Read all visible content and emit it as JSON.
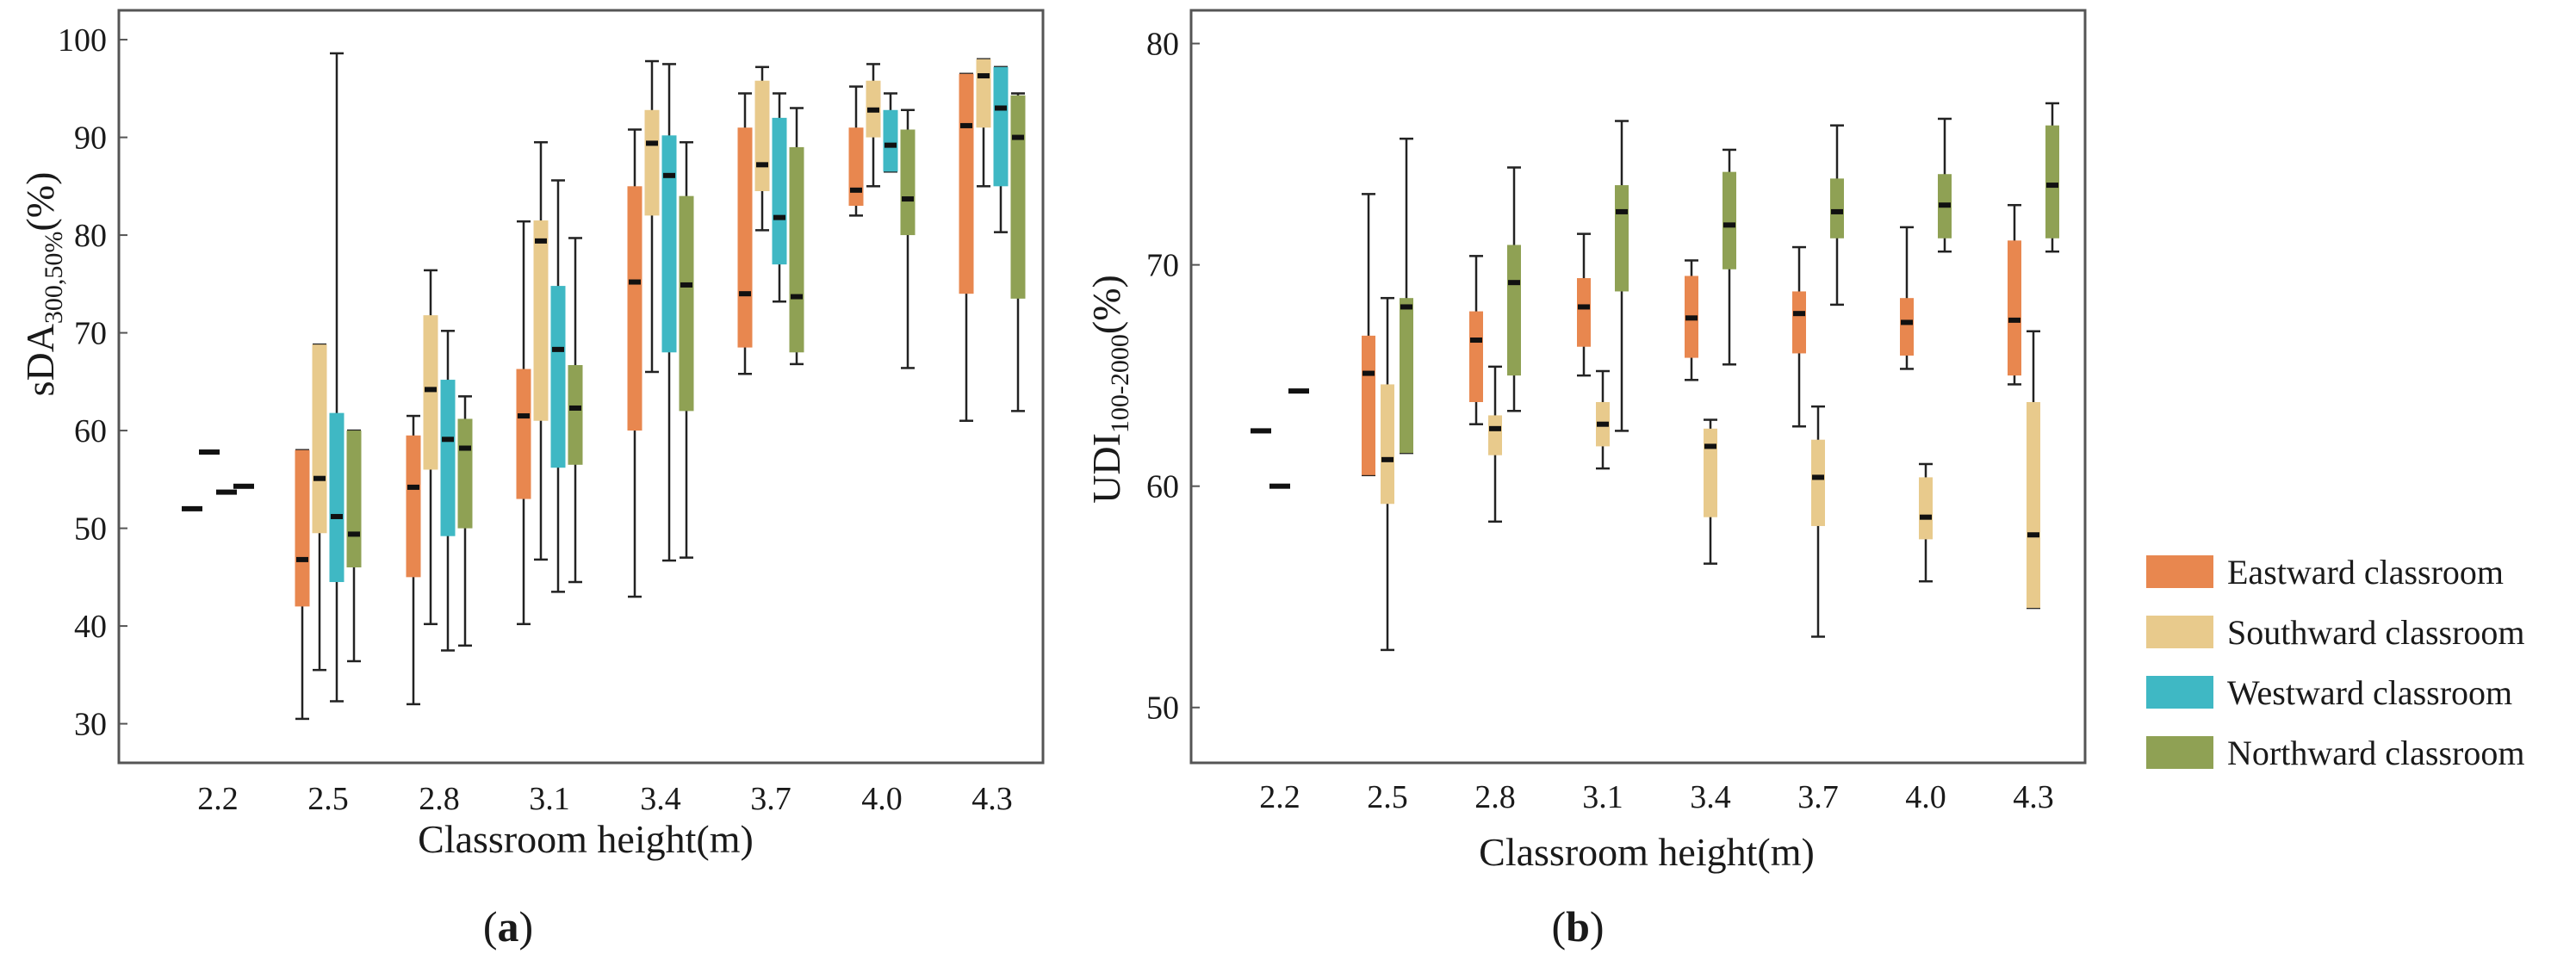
{
  "chart_data": [
    {
      "panel": "a",
      "panel_label": "a",
      "type": "boxplot",
      "xlabel": "Classroom height(m)",
      "ylabel_main": "sDA",
      "ylabel_sub": "300,50%",
      "ylabel_unit": "(%)",
      "ylim": [
        26,
        103
      ],
      "yticks": [
        30,
        40,
        50,
        60,
        70,
        80,
        90,
        100
      ],
      "categories": [
        "2.2",
        "2.5",
        "2.8",
        "3.1",
        "3.4",
        "3.7",
        "4.0",
        "4.3"
      ],
      "series": [
        {
          "name": "Eastward classroom",
          "boxes": [
            {
              "min": 52,
              "q1": 52,
              "median": 52,
              "q3": 52,
              "max": 52
            },
            {
              "min": 30.5,
              "q1": 42,
              "median": 46.8,
              "q3": 58,
              "max": 58
            },
            {
              "min": 32,
              "q1": 45,
              "median": 54.2,
              "q3": 59.5,
              "max": 61.5
            },
            {
              "min": 40.2,
              "q1": 53,
              "median": 61.5,
              "q3": 66.3,
              "max": 81.4
            },
            {
              "min": 43,
              "q1": 60,
              "median": 75.2,
              "q3": 85,
              "max": 90.8
            },
            {
              "min": 65.8,
              "q1": 68.5,
              "median": 74,
              "q3": 91,
              "max": 94.5
            },
            {
              "min": 82,
              "q1": 83,
              "median": 84.6,
              "q3": 91,
              "max": 95.2
            },
            {
              "min": 61,
              "q1": 74,
              "median": 91.2,
              "q3": 96.5,
              "max": 96.5
            }
          ]
        },
        {
          "name": "Southward classroom",
          "boxes": [
            {
              "min": 57.8,
              "q1": 57.8,
              "median": 57.8,
              "q3": 57.8,
              "max": 57.8
            },
            {
              "min": 35.5,
              "q1": 49.5,
              "median": 55.1,
              "q3": 68.8,
              "max": 68.8
            },
            {
              "min": 40.2,
              "q1": 56,
              "median": 64.2,
              "q3": 71.8,
              "max": 76.4
            },
            {
              "min": 46.8,
              "q1": 61,
              "median": 79.4,
              "q3": 81.5,
              "max": 89.5
            },
            {
              "min": 66,
              "q1": 82,
              "median": 89.4,
              "q3": 92.8,
              "max": 97.8
            },
            {
              "min": 80.5,
              "q1": 84.5,
              "median": 87.2,
              "q3": 95.8,
              "max": 97.2
            },
            {
              "min": 85,
              "q1": 90,
              "median": 92.8,
              "q3": 95.8,
              "max": 97.5
            },
            {
              "min": 85,
              "q1": 91,
              "median": 96.3,
              "q3": 98,
              "max": 98
            }
          ]
        },
        {
          "name": "Westward classroom",
          "boxes": [
            {
              "min": 53.7,
              "q1": 53.7,
              "median": 53.7,
              "q3": 53.7,
              "max": 53.7
            },
            {
              "min": 32.3,
              "q1": 44.5,
              "median": 51.2,
              "q3": 61.8,
              "max": 98.6
            },
            {
              "min": 37.5,
              "q1": 49.2,
              "median": 59.1,
              "q3": 65.2,
              "max": 70.2
            },
            {
              "min": 43.5,
              "q1": 56.2,
              "median": 68.3,
              "q3": 74.8,
              "max": 85.6
            },
            {
              "min": 46.7,
              "q1": 68,
              "median": 86.1,
              "q3": 90.2,
              "max": 97.5
            },
            {
              "min": 73.2,
              "q1": 77,
              "median": 81.8,
              "q3": 92,
              "max": 94.5
            },
            {
              "min": 86.5,
              "q1": 86.5,
              "median": 89.2,
              "q3": 92.8,
              "max": 94.5
            },
            {
              "min": 80.3,
              "q1": 85,
              "median": 93,
              "q3": 97.2,
              "max": 97.2
            }
          ]
        },
        {
          "name": "Northward classroom",
          "boxes": [
            {
              "min": 54.3,
              "q1": 54.3,
              "median": 54.3,
              "q3": 54.3,
              "max": 54.3
            },
            {
              "min": 36.4,
              "q1": 46,
              "median": 49.4,
              "q3": 60,
              "max": 60
            },
            {
              "min": 38,
              "q1": 50,
              "median": 58.2,
              "q3": 61.2,
              "max": 63.5
            },
            {
              "min": 44.5,
              "q1": 56.5,
              "median": 62.3,
              "q3": 66.7,
              "max": 79.7
            },
            {
              "min": 47,
              "q1": 62,
              "median": 74.9,
              "q3": 84,
              "max": 89.5
            },
            {
              "min": 66.8,
              "q1": 68,
              "median": 73.7,
              "q3": 89,
              "max": 93
            },
            {
              "min": 66.4,
              "q1": 80,
              "median": 83.7,
              "q3": 90.8,
              "max": 92.8
            },
            {
              "min": 62,
              "q1": 73.5,
              "median": 90,
              "q3": 94.3,
              "max": 94.5
            }
          ]
        }
      ]
    },
    {
      "panel": "b",
      "panel_label": "b",
      "type": "boxplot",
      "xlabel": "Classroom height(m)",
      "ylabel_main": "UDI",
      "ylabel_sub": "100-2000",
      "ylabel_unit": "(%)",
      "ylim": [
        47.5,
        81.5
      ],
      "yticks": [
        50,
        60,
        70,
        80
      ],
      "categories": [
        "2.2",
        "2.5",
        "2.8",
        "3.1",
        "3.4",
        "3.7",
        "4.0",
        "4.3"
      ],
      "series": [
        {
          "name": "Eastward classroom",
          "boxes": [
            {
              "min": 62.5,
              "q1": 62.5,
              "median": 62.5,
              "q3": 62.5,
              "max": 62.5
            },
            {
              "min": 60.5,
              "q1": 60.5,
              "median": 65.1,
              "q3": 66.8,
              "max": 73.2
            },
            {
              "min": 62.8,
              "q1": 63.8,
              "median": 66.6,
              "q3": 67.9,
              "max": 70.4
            },
            {
              "min": 65,
              "q1": 66.3,
              "median": 68.1,
              "q3": 69.4,
              "max": 71.4
            },
            {
              "min": 64.8,
              "q1": 65.8,
              "median": 67.6,
              "q3": 69.5,
              "max": 70.2
            },
            {
              "min": 62.7,
              "q1": 66,
              "median": 67.8,
              "q3": 68.8,
              "max": 70.8
            },
            {
              "min": 65.3,
              "q1": 65.9,
              "median": 67.4,
              "q3": 68.5,
              "max": 71.7
            },
            {
              "min": 64.6,
              "q1": 65,
              "median": 67.5,
              "q3": 71.1,
              "max": 72.7
            }
          ]
        },
        {
          "name": "Southward classroom",
          "boxes": [
            {
              "min": 60,
              "q1": 60,
              "median": 60,
              "q3": 60,
              "max": 60
            },
            {
              "min": 52.6,
              "q1": 59.2,
              "median": 61.2,
              "q3": 64.6,
              "max": 68.5
            },
            {
              "min": 58.4,
              "q1": 61.4,
              "median": 62.6,
              "q3": 63.2,
              "max": 65.4
            },
            {
              "min": 60.8,
              "q1": 61.8,
              "median": 62.8,
              "q3": 63.8,
              "max": 65.2
            },
            {
              "min": 56.5,
              "q1": 58.6,
              "median": 61.8,
              "q3": 62.6,
              "max": 63
            },
            {
              "min": 53.2,
              "q1": 58.2,
              "median": 60.4,
              "q3": 62.1,
              "max": 63.6
            },
            {
              "min": 55.7,
              "q1": 57.6,
              "median": 58.6,
              "q3": 60.4,
              "max": 61
            },
            {
              "min": 54.5,
              "q1": 54.5,
              "median": 57.8,
              "q3": 63.8,
              "max": 67
            }
          ]
        },
        {
          "name": "Northward classroom",
          "boxes": [
            {
              "min": 64.3,
              "q1": 64.3,
              "median": 64.3,
              "q3": 64.3,
              "max": 64.3
            },
            {
              "min": 61.5,
              "q1": 61.5,
              "median": 68.1,
              "q3": 68.5,
              "max": 75.7
            },
            {
              "min": 63.4,
              "q1": 65,
              "median": 69.2,
              "q3": 70.9,
              "max": 74.4
            },
            {
              "min": 62.5,
              "q1": 68.8,
              "median": 72.4,
              "q3": 73.6,
              "max": 76.5
            },
            {
              "min": 65.5,
              "q1": 69.8,
              "median": 71.8,
              "q3": 74.2,
              "max": 75.2
            },
            {
              "min": 68.2,
              "q1": 71.2,
              "median": 72.4,
              "q3": 73.9,
              "max": 76.3
            },
            {
              "min": 70.6,
              "q1": 71.2,
              "median": 72.7,
              "q3": 74.1,
              "max": 76.6
            },
            {
              "min": 70.6,
              "q1": 71.2,
              "median": 73.6,
              "q3": 76.3,
              "max": 77.3
            }
          ]
        }
      ]
    }
  ],
  "legend": {
    "items": [
      {
        "label": "Eastward classroom",
        "color": "#e8874f"
      },
      {
        "label": "Southward classroom",
        "color": "#e8ca8c"
      },
      {
        "label": "Westward classroom",
        "color": "#3fb8c4"
      },
      {
        "label": "Northward classroom",
        "color": "#8fa154"
      }
    ]
  },
  "colors": {
    "Eastward classroom": "#e8874f",
    "Southward classroom": "#e8ca8c",
    "Westward classroom": "#3fb8c4",
    "Northward classroom": "#8fa154",
    "axis": "#444444",
    "whisker": "#222222",
    "median": "#111111"
  }
}
